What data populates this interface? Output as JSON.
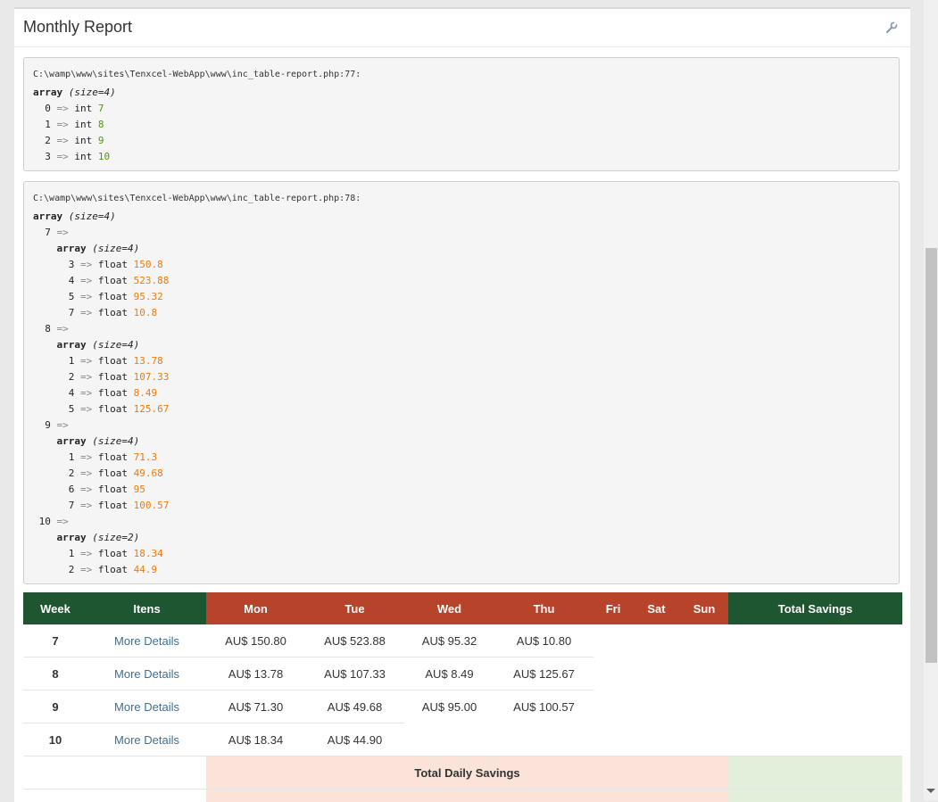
{
  "header": {
    "title": "Monthly Report",
    "settings_icon": "wrench-icon"
  },
  "dump1": {
    "file": "C:\\wamp\\www\\sites\\Tenxcel-WebApp\\www\\inc_table-report.php:77:",
    "kw": "array",
    "size": "(size=4)",
    "items": [
      {
        "key": "0",
        "type": "int",
        "value": "7"
      },
      {
        "key": "1",
        "type": "int",
        "value": "8"
      },
      {
        "key": "2",
        "type": "int",
        "value": "9"
      },
      {
        "key": "3",
        "type": "int",
        "value": "10"
      }
    ]
  },
  "dump2": {
    "file": "C:\\wamp\\www\\sites\\Tenxcel-WebApp\\www\\inc_table-report.php:78:",
    "kw": "array",
    "size": "(size=4)",
    "groups": [
      {
        "key": "7",
        "kw": "array",
        "size": "(size=4)",
        "items": [
          {
            "key": "3",
            "type": "float",
            "value": "150.8"
          },
          {
            "key": "4",
            "type": "float",
            "value": "523.88"
          },
          {
            "key": "5",
            "type": "float",
            "value": "95.32"
          },
          {
            "key": "7",
            "type": "float",
            "value": "10.8"
          }
        ]
      },
      {
        "key": "8",
        "kw": "array",
        "size": "(size=4)",
        "items": [
          {
            "key": "1",
            "type": "float",
            "value": "13.78"
          },
          {
            "key": "2",
            "type": "float",
            "value": "107.33"
          },
          {
            "key": "4",
            "type": "float",
            "value": "8.49"
          },
          {
            "key": "5",
            "type": "float",
            "value": "125.67"
          }
        ]
      },
      {
        "key": "9",
        "kw": "array",
        "size": "(size=4)",
        "items": [
          {
            "key": "1",
            "type": "float",
            "value": "71.3"
          },
          {
            "key": "2",
            "type": "float",
            "value": "49.68"
          },
          {
            "key": "6",
            "type": "float",
            "value": "95"
          },
          {
            "key": "7",
            "type": "float",
            "value": "100.57"
          }
        ]
      },
      {
        "key": "10",
        "kw": "array",
        "size": "(size=2)",
        "items": [
          {
            "key": "1",
            "type": "float",
            "value": "18.34"
          },
          {
            "key": "2",
            "type": "float",
            "value": "44.9"
          }
        ]
      }
    ]
  },
  "table": {
    "headers": {
      "week": "Week",
      "itens": "Itens",
      "mon": "Mon",
      "tue": "Tue",
      "wed": "Wed",
      "thu": "Thu",
      "fri": "Fri",
      "sat": "Sat",
      "sun": "Sun",
      "total": "Total Savings"
    },
    "rows": [
      {
        "week": "7",
        "link": "More Details",
        "mon": "AU$ 150.80",
        "tue": "AU$ 523.88",
        "wed": "AU$ 95.32",
        "thu": "AU$ 10.80"
      },
      {
        "week": "8",
        "link": "More Details",
        "mon": "AU$ 13.78",
        "tue": "AU$ 107.33",
        "wed": "AU$ 8.49",
        "thu": "AU$ 125.67"
      },
      {
        "week": "9",
        "link": "More Details",
        "mon": "AU$ 71.30",
        "tue": "AU$ 49.68",
        "wed": "AU$ 95.00",
        "thu": "AU$ 100.57"
      },
      {
        "week": "10",
        "link": "More Details",
        "mon": "AU$ 18.34",
        "tue": "AU$ 44.90",
        "wed": "",
        "thu": ""
      }
    ],
    "total_daily_label": "Total Daily Savings"
  },
  "colors": {
    "green": "#1e5631",
    "red": "#b7442a",
    "int": "#4e9a06",
    "float": "#f57900"
  }
}
